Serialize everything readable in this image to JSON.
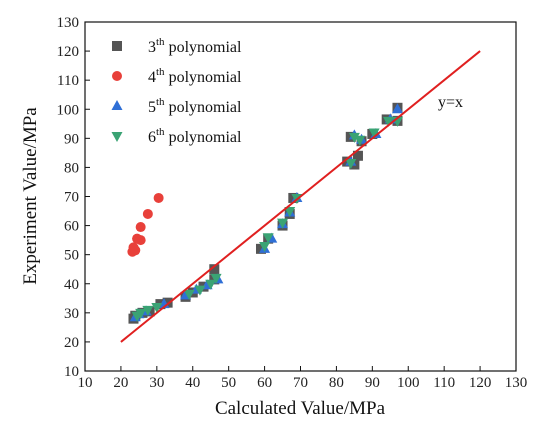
{
  "chart_data": {
    "type": "scatter",
    "xlabel": "Calculated Value/MPa",
    "ylabel": "Experiment Value/MPa",
    "xlim": [
      10,
      130
    ],
    "ylim": [
      10,
      130
    ],
    "xticks": [
      10,
      20,
      30,
      40,
      50,
      60,
      70,
      80,
      90,
      100,
      110,
      120,
      130
    ],
    "yticks": [
      10,
      20,
      30,
      40,
      50,
      60,
      70,
      80,
      90,
      100,
      110,
      120,
      130
    ],
    "grid": false,
    "legend_position": "top-left",
    "series": [
      {
        "name_main": "3",
        "name_sup": "th",
        "name_rest": " polynomial",
        "marker": "square",
        "color": "#555555",
        "points": [
          [
            23.5,
            28
          ],
          [
            24,
            29
          ],
          [
            26,
            30
          ],
          [
            28,
            30.5
          ],
          [
            31,
            33
          ],
          [
            33,
            33.5
          ],
          [
            38,
            35.5
          ],
          [
            40,
            37
          ],
          [
            43,
            39
          ],
          [
            46,
            41.5
          ],
          [
            46,
            45
          ],
          [
            59,
            52
          ],
          [
            61,
            55.5
          ],
          [
            65,
            60
          ],
          [
            67,
            64
          ],
          [
            68,
            69.5
          ],
          [
            83,
            82
          ],
          [
            84,
            90.5
          ],
          [
            85,
            81
          ],
          [
            86,
            84
          ],
          [
            87,
            89
          ],
          [
            90,
            91.5
          ],
          [
            94,
            96.5
          ],
          [
            97,
            100.5
          ],
          [
            97,
            96
          ]
        ]
      },
      {
        "name_main": "4",
        "name_sup": "th",
        "name_rest": " polynomial",
        "marker": "circle",
        "color": "#e8403a",
        "points": [
          [
            23.2,
            51
          ],
          [
            23.5,
            52.5
          ],
          [
            24,
            51.5
          ],
          [
            24.5,
            55.5
          ],
          [
            25.5,
            59.5
          ],
          [
            25.5,
            55
          ],
          [
            27.5,
            64
          ],
          [
            30.5,
            69.5
          ]
        ]
      },
      {
        "name_main": "5",
        "name_sup": "th",
        "name_rest": " polynomial",
        "marker": "triangle-up",
        "color": "#2f6fd6",
        "points": [
          [
            24,
            28.5
          ],
          [
            25,
            29.5
          ],
          [
            27,
            30.5
          ],
          [
            32,
            33
          ],
          [
            38,
            36
          ],
          [
            41,
            38
          ],
          [
            44,
            39.5
          ],
          [
            47,
            41.5
          ],
          [
            60,
            52
          ],
          [
            62,
            55.5
          ],
          [
            65,
            60.5
          ],
          [
            67,
            64.5
          ],
          [
            69,
            69.5
          ],
          [
            84,
            82
          ],
          [
            85,
            91
          ],
          [
            87,
            89.5
          ],
          [
            91,
            91.5
          ],
          [
            95,
            96.5
          ],
          [
            97,
            100
          ]
        ]
      },
      {
        "name_main": "6",
        "name_sup": "th",
        "name_rest": " polynomial",
        "marker": "triangle-down",
        "color": "#3aa374",
        "points": [
          [
            24.5,
            29
          ],
          [
            25.5,
            30
          ],
          [
            27.5,
            31
          ],
          [
            30,
            32
          ],
          [
            39,
            36.5
          ],
          [
            42,
            38
          ],
          [
            45,
            40
          ],
          [
            46.5,
            42
          ],
          [
            60,
            53
          ],
          [
            61,
            56
          ],
          [
            65,
            61
          ],
          [
            67,
            65
          ],
          [
            69,
            69.5
          ],
          [
            84,
            81.5
          ],
          [
            85,
            90.5
          ],
          [
            86.5,
            89.5
          ],
          [
            90.5,
            92
          ],
          [
            94.5,
            96
          ],
          [
            97,
            96
          ]
        ]
      }
    ],
    "reference_line": {
      "label": "y=x",
      "from": [
        20,
        20
      ],
      "to": [
        120,
        120
      ],
      "color": "#e02020"
    }
  }
}
